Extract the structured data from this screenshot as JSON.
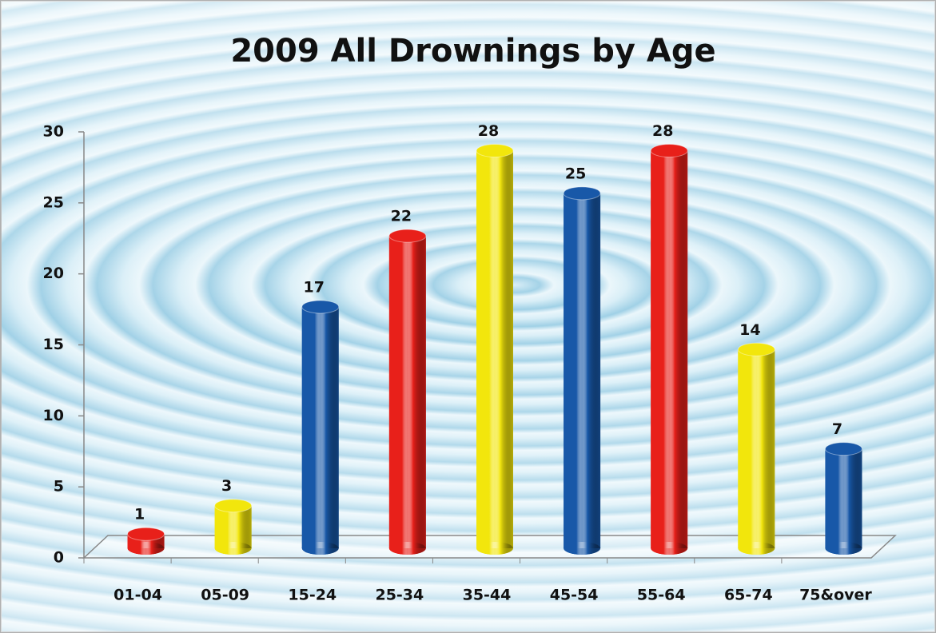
{
  "chart_data": {
    "type": "bar3d",
    "title": "2009 All Drownings by Age",
    "categories": [
      "01-04",
      "05-09",
      "15-24",
      "25-34",
      "35-44",
      "45-54",
      "55-64",
      "65-74",
      "75&over"
    ],
    "values": [
      1,
      3,
      17,
      22,
      28,
      25,
      28,
      14,
      7
    ],
    "colors": [
      "#e8201a",
      "#f2e60c",
      "#1858a8",
      "#e8201a",
      "#f2e60c",
      "#1858a8",
      "#e8201a",
      "#f2e60c",
      "#1858a8"
    ],
    "ylim": [
      0,
      30
    ],
    "yticks": [
      0,
      5,
      10,
      15,
      20,
      25,
      30
    ],
    "grid": false
  }
}
